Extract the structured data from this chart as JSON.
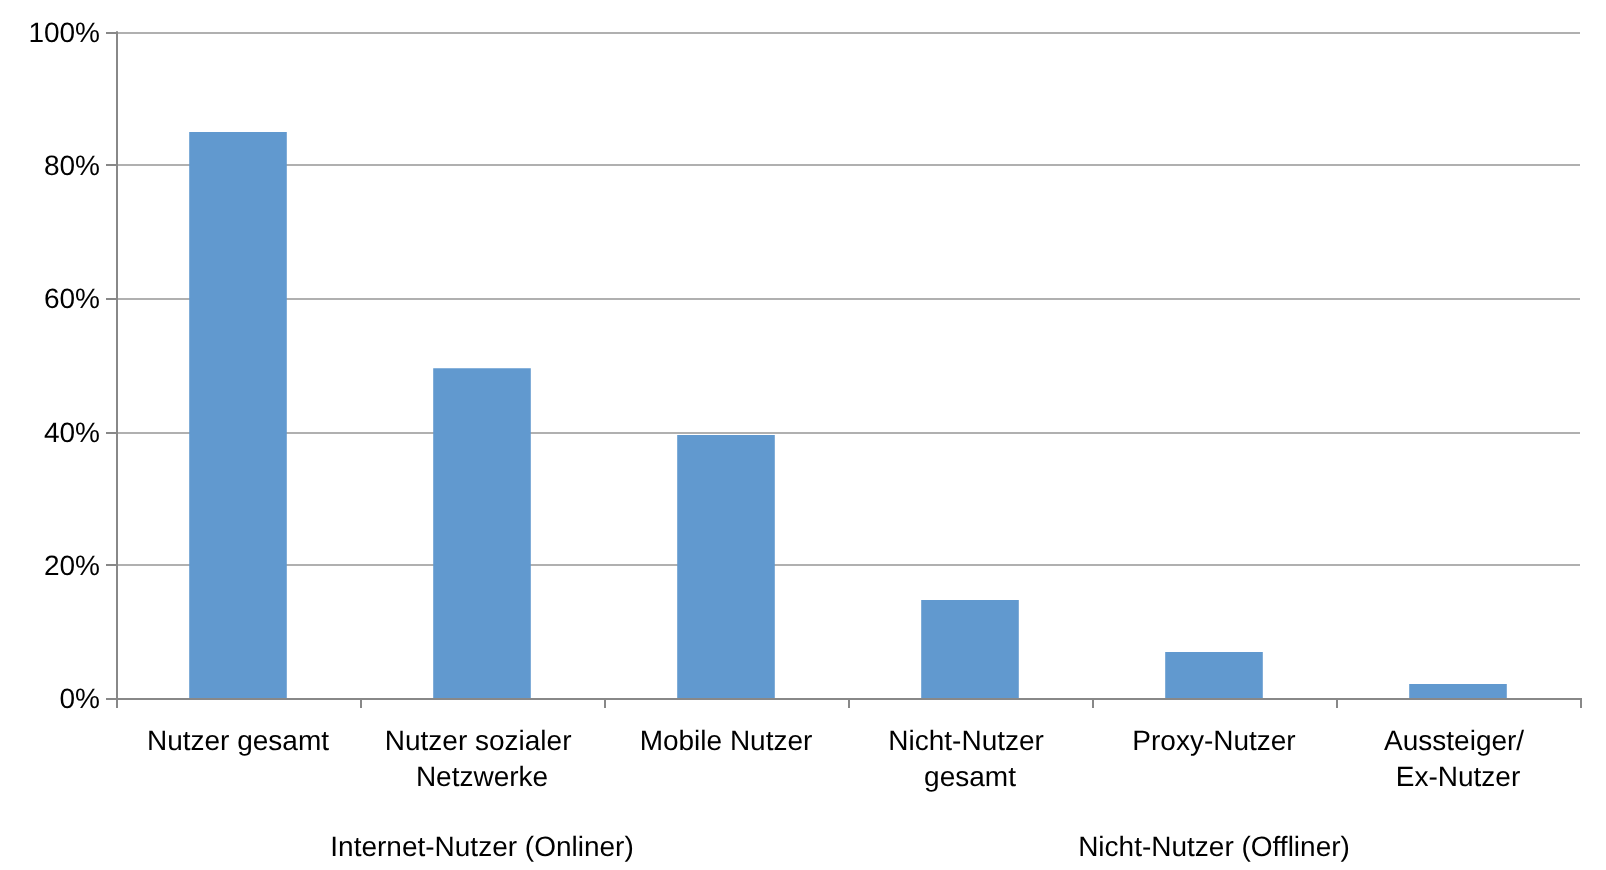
{
  "chart_data": {
    "type": "bar",
    "categories": [
      "Nutzer gesamt",
      "Nutzer sozialer Netzwerke",
      "Mobile Nutzer",
      "Nicht-Nutzer gesamt",
      "Proxy-Nutzer",
      "Aussteiger/ Ex-Nutzer"
    ],
    "values": [
      85,
      49.5,
      39.5,
      14.7,
      6.9,
      2.1
    ],
    "color": "#6199cf",
    "ylim": [
      0,
      100
    ],
    "yticks": [
      {
        "value": 0,
        "label": "0%"
      },
      {
        "value": 20,
        "label": "20%"
      },
      {
        "value": 40,
        "label": "40%"
      },
      {
        "value": 60,
        "label": "60%"
      },
      {
        "value": 80,
        "label": "80%"
      },
      {
        "value": 100,
        "label": "100%"
      }
    ],
    "grid": "y",
    "annotations": [
      "Internet-Nutzer (Onliner)",
      "Nicht-Nutzer (Offliner)"
    ]
  }
}
